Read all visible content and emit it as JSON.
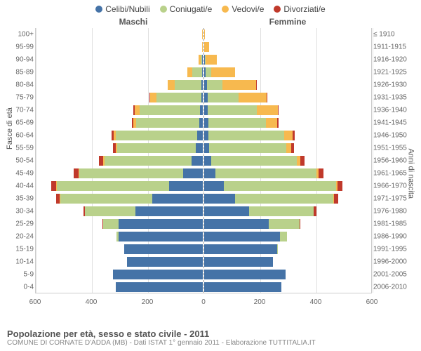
{
  "type": "population-pyramid",
  "legend": {
    "items": [
      {
        "label": "Celibi/Nubili",
        "color": "#4573a7"
      },
      {
        "label": "Coniugati/e",
        "color": "#b9d18b"
      },
      {
        "label": "Vedovi/e",
        "color": "#f7b94f"
      },
      {
        "label": "Divorziati/e",
        "color": "#c0392b"
      }
    ]
  },
  "header": {
    "male": "Maschi",
    "female": "Femmine"
  },
  "axis": {
    "left_title": "Fasce di età",
    "right_title": "Anni di nascita",
    "x_ticks": [
      -600,
      -400,
      -200,
      0,
      200,
      400,
      600
    ],
    "x_tick_labels": [
      "600",
      "400",
      "200",
      "0",
      "200",
      "400",
      "600"
    ],
    "x_min": -600,
    "x_max": 600
  },
  "colors": {
    "single": "#4573a7",
    "married": "#b9d18b",
    "widowed": "#f7b94f",
    "divorced": "#c0392b",
    "grid": "#e0e0e0",
    "center": "#999999",
    "bg": "#ffffff"
  },
  "rows": [
    {
      "age": "100+",
      "birth": "≤ 1910",
      "m": {
        "s": 0,
        "m": 0,
        "w": 2,
        "d": 0
      },
      "f": {
        "s": 0,
        "m": 0,
        "w": 3,
        "d": 0
      }
    },
    {
      "age": "95-99",
      "birth": "1911-1915",
      "m": {
        "s": 0,
        "m": 0,
        "w": 2,
        "d": 0
      },
      "f": {
        "s": 0,
        "m": 0,
        "w": 18,
        "d": 0
      }
    },
    {
      "age": "90-94",
      "birth": "1916-1920",
      "m": {
        "s": 2,
        "m": 6,
        "w": 8,
        "d": 0
      },
      "f": {
        "s": 2,
        "m": 4,
        "w": 38,
        "d": 0
      }
    },
    {
      "age": "85-89",
      "birth": "1921-1925",
      "m": {
        "s": 2,
        "m": 35,
        "w": 18,
        "d": 0
      },
      "f": {
        "s": 6,
        "m": 20,
        "w": 85,
        "d": 0
      }
    },
    {
      "age": "80-84",
      "birth": "1926-1930",
      "m": {
        "s": 4,
        "m": 95,
        "w": 25,
        "d": 0
      },
      "f": {
        "s": 10,
        "m": 55,
        "w": 120,
        "d": 2
      }
    },
    {
      "age": "75-79",
      "birth": "1931-1935",
      "m": {
        "s": 6,
        "m": 160,
        "w": 22,
        "d": 2
      },
      "f": {
        "s": 12,
        "m": 110,
        "w": 100,
        "d": 2
      }
    },
    {
      "age": "70-74",
      "birth": "1936-1940",
      "m": {
        "s": 10,
        "m": 215,
        "w": 18,
        "d": 4
      },
      "f": {
        "s": 12,
        "m": 175,
        "w": 75,
        "d": 4
      }
    },
    {
      "age": "65-69",
      "birth": "1941-1945",
      "m": {
        "s": 12,
        "m": 225,
        "w": 10,
        "d": 5
      },
      "f": {
        "s": 14,
        "m": 205,
        "w": 40,
        "d": 5
      }
    },
    {
      "age": "60-64",
      "birth": "1946-1950",
      "m": {
        "s": 20,
        "m": 290,
        "w": 8,
        "d": 8
      },
      "f": {
        "s": 15,
        "m": 270,
        "w": 30,
        "d": 8
      }
    },
    {
      "age": "55-59",
      "birth": "1951-1955",
      "m": {
        "s": 25,
        "m": 280,
        "w": 5,
        "d": 10
      },
      "f": {
        "s": 18,
        "m": 275,
        "w": 18,
        "d": 10
      }
    },
    {
      "age": "50-54",
      "birth": "1956-1960",
      "m": {
        "s": 40,
        "m": 310,
        "w": 4,
        "d": 15
      },
      "f": {
        "s": 25,
        "m": 305,
        "w": 12,
        "d": 15
      }
    },
    {
      "age": "45-49",
      "birth": "1961-1965",
      "m": {
        "s": 70,
        "m": 370,
        "w": 3,
        "d": 18
      },
      "f": {
        "s": 40,
        "m": 360,
        "w": 8,
        "d": 18
      }
    },
    {
      "age": "40-44",
      "birth": "1966-1970",
      "m": {
        "s": 120,
        "m": 400,
        "w": 2,
        "d": 18
      },
      "f": {
        "s": 70,
        "m": 400,
        "w": 5,
        "d": 18
      }
    },
    {
      "age": "35-39",
      "birth": "1971-1975",
      "m": {
        "s": 180,
        "m": 330,
        "w": 1,
        "d": 12
      },
      "f": {
        "s": 110,
        "m": 350,
        "w": 3,
        "d": 15
      }
    },
    {
      "age": "30-34",
      "birth": "1976-1980",
      "m": {
        "s": 240,
        "m": 180,
        "w": 0,
        "d": 6
      },
      "f": {
        "s": 160,
        "m": 230,
        "w": 1,
        "d": 8
      }
    },
    {
      "age": "25-29",
      "birth": "1981-1985",
      "m": {
        "s": 300,
        "m": 55,
        "w": 0,
        "d": 2
      },
      "f": {
        "s": 230,
        "m": 110,
        "w": 0,
        "d": 3
      }
    },
    {
      "age": "20-24",
      "birth": "1986-1990",
      "m": {
        "s": 300,
        "m": 8,
        "w": 0,
        "d": 0
      },
      "f": {
        "s": 270,
        "m": 25,
        "w": 0,
        "d": 0
      }
    },
    {
      "age": "15-19",
      "birth": "1991-1995",
      "m": {
        "s": 280,
        "m": 0,
        "w": 0,
        "d": 0
      },
      "f": {
        "s": 260,
        "m": 2,
        "w": 0,
        "d": 0
      }
    },
    {
      "age": "10-14",
      "birth": "1996-2000",
      "m": {
        "s": 270,
        "m": 0,
        "w": 0,
        "d": 0
      },
      "f": {
        "s": 245,
        "m": 0,
        "w": 0,
        "d": 0
      }
    },
    {
      "age": "5-9",
      "birth": "2001-2005",
      "m": {
        "s": 320,
        "m": 0,
        "w": 0,
        "d": 0
      },
      "f": {
        "s": 290,
        "m": 0,
        "w": 0,
        "d": 0
      }
    },
    {
      "age": "0-4",
      "birth": "2006-2010",
      "m": {
        "s": 310,
        "m": 0,
        "w": 0,
        "d": 0
      },
      "f": {
        "s": 275,
        "m": 0,
        "w": 0,
        "d": 0
      }
    }
  ],
  "footer": {
    "title": "Popolazione per età, sesso e stato civile - 2011",
    "subtitle": "COMUNE DI CORNATE D'ADDA (MB) - Dati ISTAT 1° gennaio 2011 - Elaborazione TUTTITALIA.IT"
  }
}
